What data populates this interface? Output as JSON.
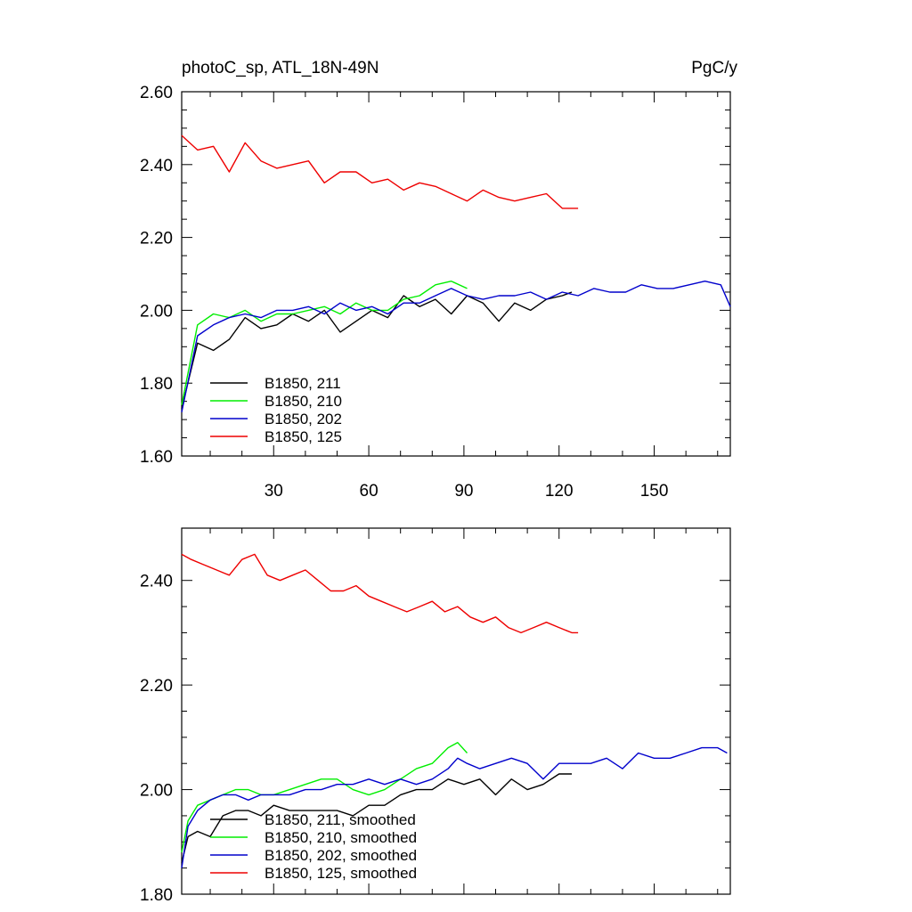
{
  "chart_data": [
    {
      "type": "line",
      "title": "photoC_sp, ATL_18N-49N",
      "units": "PgC/y",
      "xlabel": "",
      "ylabel": "",
      "xlim": [
        1,
        174
      ],
      "ylim": [
        1.6,
        2.6
      ],
      "xticks": [
        30,
        60,
        90,
        120,
        150
      ],
      "xtick_labels": [
        "30",
        "60",
        "90",
        "120",
        "150"
      ],
      "yticks": [
        1.6,
        1.8,
        2.0,
        2.2,
        2.4,
        2.6
      ],
      "ytick_labels": [
        "1.60",
        "1.80",
        "2.00",
        "2.20",
        "2.40",
        "2.60"
      ],
      "grid": false,
      "legend_position": "bottom-left",
      "series": [
        {
          "name": "B1850, 211",
          "color": "#000000",
          "x": [
            1,
            6,
            11,
            16,
            21,
            26,
            31,
            36,
            41,
            46,
            51,
            56,
            61,
            66,
            71,
            76,
            81,
            86,
            91,
            96,
            101,
            106,
            111,
            116,
            121,
            124
          ],
          "y": [
            1.73,
            1.91,
            1.89,
            1.92,
            1.98,
            1.95,
            1.96,
            1.99,
            1.97,
            2.0,
            1.94,
            1.97,
            2.0,
            1.98,
            2.04,
            2.01,
            2.03,
            1.99,
            2.04,
            2.02,
            1.97,
            2.02,
            2.0,
            2.03,
            2.04,
            2.05
          ]
        },
        {
          "name": "B1850, 210",
          "color": "#00ee00",
          "x": [
            1,
            6,
            11,
            16,
            21,
            26,
            31,
            36,
            41,
            46,
            51,
            56,
            61,
            66,
            71,
            76,
            81,
            86,
            91
          ],
          "y": [
            1.74,
            1.96,
            1.99,
            1.98,
            2.0,
            1.97,
            1.99,
            1.99,
            2.0,
            2.01,
            1.99,
            2.02,
            2.0,
            2.0,
            2.03,
            2.04,
            2.07,
            2.08,
            2.06
          ]
        },
        {
          "name": "B1850, 202",
          "color": "#0000cc",
          "x": [
            1,
            6,
            11,
            16,
            21,
            26,
            31,
            36,
            41,
            46,
            51,
            56,
            61,
            66,
            71,
            76,
            81,
            86,
            91,
            96,
            101,
            106,
            111,
            116,
            121,
            126,
            131,
            136,
            141,
            146,
            151,
            156,
            161,
            166,
            171,
            174
          ],
          "y": [
            1.72,
            1.93,
            1.96,
            1.98,
            1.99,
            1.98,
            2.0,
            2.0,
            2.01,
            1.99,
            2.02,
            2.0,
            2.01,
            1.99,
            2.02,
            2.02,
            2.04,
            2.06,
            2.04,
            2.03,
            2.04,
            2.04,
            2.05,
            2.03,
            2.05,
            2.04,
            2.06,
            2.05,
            2.05,
            2.07,
            2.06,
            2.06,
            2.07,
            2.08,
            2.07,
            2.01
          ]
        },
        {
          "name": "B1850, 125",
          "color": "#ee0000",
          "x": [
            1,
            6,
            11,
            16,
            21,
            26,
            31,
            36,
            41,
            46,
            51,
            56,
            61,
            66,
            71,
            76,
            81,
            86,
            91,
            96,
            101,
            106,
            111,
            116,
            121,
            126
          ],
          "y": [
            2.48,
            2.44,
            2.45,
            2.38,
            2.46,
            2.41,
            2.39,
            2.4,
            2.41,
            2.35,
            2.38,
            2.38,
            2.35,
            2.36,
            2.33,
            2.35,
            2.34,
            2.32,
            2.3,
            2.33,
            2.31,
            2.3,
            2.31,
            2.32,
            2.28,
            2.28
          ]
        }
      ]
    },
    {
      "type": "line",
      "title": "",
      "xlabel": "",
      "ylabel": "",
      "xlim": [
        1,
        174
      ],
      "ylim": [
        1.8,
        2.5
      ],
      "xticks": [
        30,
        60,
        90,
        120,
        150
      ],
      "xtick_labels": [],
      "yticks": [
        1.8,
        2.0,
        2.2,
        2.4
      ],
      "ytick_labels": [
        "1.80",
        "2.00",
        "2.20",
        "2.40"
      ],
      "grid": false,
      "legend_position": "bottom-left",
      "series": [
        {
          "name": "B1850, 211, smoothed",
          "color": "#000000",
          "x": [
            1,
            3,
            6,
            10,
            14,
            18,
            22,
            26,
            30,
            35,
            40,
            45,
            50,
            55,
            60,
            65,
            70,
            75,
            80,
            85,
            90,
            95,
            100,
            105,
            110,
            115,
            120,
            124
          ],
          "y": [
            1.86,
            1.91,
            1.92,
            1.91,
            1.95,
            1.96,
            1.96,
            1.95,
            1.97,
            1.96,
            1.96,
            1.96,
            1.96,
            1.95,
            1.97,
            1.97,
            1.99,
            2.0,
            2.0,
            2.02,
            2.01,
            2.02,
            1.99,
            2.02,
            2.0,
            2.01,
            2.03,
            2.03
          ]
        },
        {
          "name": "B1850, 210, smoothed",
          "color": "#00ee00",
          "x": [
            1,
            3,
            6,
            10,
            14,
            18,
            22,
            26,
            30,
            35,
            40,
            45,
            50,
            55,
            60,
            65,
            70,
            75,
            80,
            85,
            88,
            91
          ],
          "y": [
            1.88,
            1.94,
            1.97,
            1.98,
            1.99,
            2.0,
            2.0,
            1.99,
            1.99,
            2.0,
            2.01,
            2.02,
            2.02,
            2.0,
            1.99,
            2.0,
            2.02,
            2.04,
            2.05,
            2.08,
            2.09,
            2.07
          ]
        },
        {
          "name": "B1850, 202, smoothed",
          "color": "#0000cc",
          "x": [
            1,
            3,
            6,
            10,
            14,
            18,
            22,
            26,
            30,
            35,
            40,
            45,
            50,
            55,
            60,
            65,
            70,
            75,
            80,
            85,
            88,
            91,
            95,
            100,
            105,
            110,
            115,
            120,
            125,
            130,
            135,
            140,
            145,
            150,
            155,
            160,
            165,
            170,
            173
          ],
          "y": [
            1.85,
            1.93,
            1.96,
            1.98,
            1.99,
            1.99,
            1.98,
            1.99,
            1.99,
            1.99,
            2.0,
            2.0,
            2.01,
            2.01,
            2.02,
            2.01,
            2.02,
            2.01,
            2.02,
            2.04,
            2.06,
            2.05,
            2.04,
            2.05,
            2.06,
            2.05,
            2.02,
            2.05,
            2.05,
            2.05,
            2.06,
            2.04,
            2.07,
            2.06,
            2.06,
            2.07,
            2.08,
            2.08,
            2.07
          ]
        },
        {
          "name": "B1850, 125, smoothed",
          "color": "#ee0000",
          "x": [
            1,
            4,
            8,
            12,
            16,
            20,
            24,
            28,
            32,
            36,
            40,
            44,
            48,
            52,
            56,
            60,
            64,
            68,
            72,
            76,
            80,
            84,
            88,
            92,
            96,
            100,
            104,
            108,
            112,
            116,
            120,
            124,
            126
          ],
          "y": [
            2.45,
            2.44,
            2.43,
            2.42,
            2.41,
            2.44,
            2.45,
            2.41,
            2.4,
            2.41,
            2.42,
            2.4,
            2.38,
            2.38,
            2.39,
            2.37,
            2.36,
            2.35,
            2.34,
            2.35,
            2.36,
            2.34,
            2.35,
            2.33,
            2.32,
            2.33,
            2.31,
            2.3,
            2.31,
            2.32,
            2.31,
            2.3,
            2.3
          ]
        }
      ]
    }
  ]
}
